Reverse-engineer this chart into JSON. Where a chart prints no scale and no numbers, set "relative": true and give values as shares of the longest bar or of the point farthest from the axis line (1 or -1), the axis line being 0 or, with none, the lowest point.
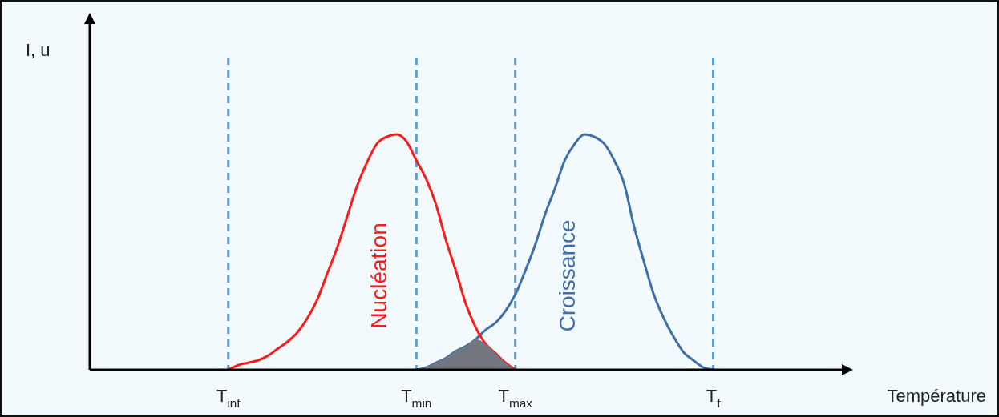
{
  "chart_data": {
    "type": "line",
    "xlabel": "Température",
    "ylabel": "I, u",
    "relative": true,
    "marker": "none",
    "legend": false,
    "categories": [
      null,
      null,
      null,
      null,
      null,
      null,
      null,
      null,
      null,
      null,
      null,
      null,
      null,
      null,
      "T$_{inf}$",
      null,
      null,
      null,
      null,
      null,
      null,
      null,
      null,
      null,
      null,
      null,
      null,
      null,
      null,
      null,
      null,
      null,
      null,
      "T$_{min}$",
      null,
      null,
      null,
      null,
      null,
      null,
      null,
      null,
      null,
      "T$_{max}$",
      null,
      null,
      null,
      null,
      null,
      null,
      null,
      null,
      null,
      null,
      null,
      null,
      null,
      null,
      null,
      null,
      null,
      null,
      null,
      "T$_{f}$",
      null,
      null,
      null,
      null,
      null,
      null,
      null,
      null,
      null,
      null,
      null,
      null,
      null
    ],
    "ref_lines": [
      {
        "axis": "x",
        "value": "T$_{inf}$",
        "color": "#5b9bd5",
        "line_style": "dashed"
      },
      {
        "axis": "x",
        "value": "T$_{min}$",
        "color": "#5b9bd5",
        "line_style": "dashed"
      },
      {
        "axis": "x",
        "value": "T$_{max}$",
        "color": "#5b9bd5",
        "line_style": "dashed"
      },
      {
        "axis": "x",
        "value": "T$_{f}$",
        "color": "#5b9bd5",
        "line_style": "dashed"
      }
    ],
    "series": [
      {
        "type": "area",
        "color": "#737780",
        "values": [
          null,
          null,
          null,
          null,
          null,
          null,
          null,
          null,
          null,
          null,
          null,
          null,
          null,
          null,
          null,
          null,
          null,
          null,
          null,
          null,
          null,
          null,
          null,
          null,
          null,
          null,
          null,
          null,
          null,
          null,
          null,
          null,
          null,
          0,
          0.01,
          0.03,
          0.05,
          0.08,
          0.1,
          0.13,
          0.11,
          0.07,
          0.03,
          0,
          null,
          null,
          null,
          null,
          null,
          null,
          null,
          null,
          null,
          null,
          null,
          null,
          null,
          null,
          null,
          null,
          null,
          null,
          null,
          null,
          null,
          null,
          null,
          null,
          null,
          null,
          null,
          null,
          null,
          null,
          null,
          null,
          null
        ]
      },
      {
        "name": "Nucléation",
        "color": "#ff1a1a",
        "values": [
          null,
          null,
          null,
          null,
          null,
          null,
          null,
          null,
          null,
          null,
          null,
          null,
          null,
          null,
          0,
          0.02,
          0.03,
          0.04,
          0.06,
          0.09,
          0.12,
          0.16,
          0.22,
          0.3,
          0.41,
          0.52,
          0.65,
          0.78,
          0.88,
          0.96,
          0.99,
          1,
          0.97,
          0.89,
          0.81,
          0.7,
          0.55,
          0.42,
          0.28,
          0.18,
          0.11,
          0.07,
          0.03,
          0,
          null,
          null,
          null,
          null,
          null,
          null,
          null,
          null,
          null,
          null,
          null,
          null,
          null,
          null,
          null,
          null,
          null,
          null,
          null,
          null,
          null,
          null,
          null,
          null,
          null,
          null,
          null,
          null,
          null,
          null,
          null,
          null,
          null
        ]
      },
      {
        "name": "Croissance",
        "color": "#3d6fa8",
        "values": [
          null,
          null,
          null,
          null,
          null,
          null,
          null,
          null,
          null,
          null,
          null,
          null,
          null,
          null,
          null,
          null,
          null,
          null,
          null,
          null,
          null,
          null,
          null,
          null,
          null,
          null,
          null,
          null,
          null,
          null,
          null,
          null,
          null,
          0,
          0.01,
          0.03,
          0.05,
          0.08,
          0.1,
          0.13,
          0.17,
          0.2,
          0.25,
          0.32,
          0.42,
          0.53,
          0.66,
          0.77,
          0.89,
          0.96,
          1,
          0.99,
          0.96,
          0.89,
          0.79,
          0.61,
          0.46,
          0.32,
          0.22,
          0.14,
          0.075,
          0.04,
          0.01,
          0,
          null,
          null,
          null,
          null,
          null,
          null,
          null,
          null,
          null,
          null,
          null,
          null,
          null
        ]
      }
    ]
  }
}
